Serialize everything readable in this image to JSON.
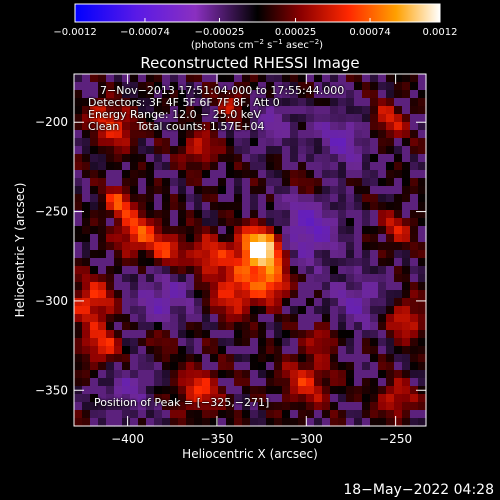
{
  "chart_data": {
    "type": "heatmap",
    "title": "Reconstructed RHESSI Image",
    "xlabel": "Heliocentric X (arcsec)",
    "ylabel": "Heliocentric Y (arcsec)",
    "xlim": [
      -430,
      -233
    ],
    "ylim": [
      -370,
      -173
    ],
    "x_ticks": [
      -400,
      -350,
      -300,
      -250
    ],
    "x_tick_labels": [
      "−400",
      "−350",
      "−300",
      "−250"
    ],
    "y_ticks": [
      -350,
      -300,
      -250,
      -200
    ],
    "y_tick_labels": [
      "−350",
      "−300",
      "−250",
      "−200"
    ],
    "colorbar": {
      "min": -0.0012,
      "max": 0.0012,
      "ticks": [
        -0.0012,
        -0.00074,
        -0.00025,
        0.00025,
        0.00074,
        0.0012
      ],
      "tick_labels": [
        "−0.0012",
        "−0.00074",
        "−0.00025",
        "0.00025",
        "0.00074",
        "0.0012"
      ],
      "units_prefix": "(photons cm",
      "units_exp1": "−2",
      "units_mid1": " s",
      "units_exp2": "−1",
      "units_mid2": " asec",
      "units_exp3": "−2",
      "units_suffix": ")"
    },
    "info_lines": [
      "7−Nov−2013 17:51:04.000 to 17:55:44.000",
      "Detectors: 3F 4F 5F 6F 7F 8F, Att 0",
      "Energy Range: 12.0 − 25.0 keV",
      "Clean     Total counts: 1.57E+04"
    ],
    "peak_label": "Position of Peak = [−325,−271]",
    "peak_position": [
      -325,
      -271
    ],
    "blobs": [
      {
        "x": -325,
        "y": -271,
        "sigma": 9,
        "amp": 1.15
      },
      {
        "x": -318,
        "y": -290,
        "sigma": 7,
        "amp": 0.55
      },
      {
        "x": -340,
        "y": -295,
        "sigma": 10,
        "amp": 0.5
      },
      {
        "x": -355,
        "y": -275,
        "sigma": 8,
        "amp": 0.45
      },
      {
        "x": -395,
        "y": -262,
        "sigma": 8,
        "amp": 0.55
      },
      {
        "x": -378,
        "y": -272,
        "sigma": 7,
        "amp": 0.45
      },
      {
        "x": -405,
        "y": -245,
        "sigma": 6,
        "amp": 0.5
      },
      {
        "x": -415,
        "y": -195,
        "sigma": 6,
        "amp": 0.4
      },
      {
        "x": -405,
        "y": -205,
        "sigma": 7,
        "amp": 0.45
      },
      {
        "x": -420,
        "y": -300,
        "sigma": 9,
        "amp": 0.5
      },
      {
        "x": -415,
        "y": -325,
        "sigma": 8,
        "amp": 0.45
      },
      {
        "x": -360,
        "y": -350,
        "sigma": 9,
        "amp": 0.45
      },
      {
        "x": -300,
        "y": -345,
        "sigma": 10,
        "amp": 0.4
      },
      {
        "x": -255,
        "y": -200,
        "sigma": 8,
        "amp": 0.4
      },
      {
        "x": -250,
        "y": -260,
        "sigma": 7,
        "amp": 0.35
      },
      {
        "x": -245,
        "y": -310,
        "sigma": 8,
        "amp": 0.45
      },
      {
        "x": -250,
        "y": -355,
        "sigma": 7,
        "amp": 0.4
      },
      {
        "x": -360,
        "y": -215,
        "sigma": 7,
        "amp": 0.4
      },
      {
        "x": -340,
        "y": -190,
        "sigma": 7,
        "amp": 0.35
      },
      {
        "x": -300,
        "y": -235,
        "sigma": 6,
        "amp": 0.3
      },
      {
        "x": -290,
        "y": -320,
        "sigma": 6,
        "amp": 0.35
      },
      {
        "x": -380,
        "y": -320,
        "sigma": 6,
        "amp": 0.3
      },
      {
        "x": -300,
        "y": -260,
        "sigma": 14,
        "amp": -0.55
      },
      {
        "x": -380,
        "y": -300,
        "sigma": 12,
        "amp": -0.45
      },
      {
        "x": -280,
        "y": -210,
        "sigma": 12,
        "amp": -0.45
      },
      {
        "x": -270,
        "y": -300,
        "sigma": 12,
        "amp": -0.4
      },
      {
        "x": -320,
        "y": -200,
        "sigma": 10,
        "amp": -0.35
      },
      {
        "x": -400,
        "y": -350,
        "sigma": 10,
        "amp": -0.35
      }
    ]
  },
  "footer": {
    "date_stamp": "18−May−2022 04:28"
  }
}
